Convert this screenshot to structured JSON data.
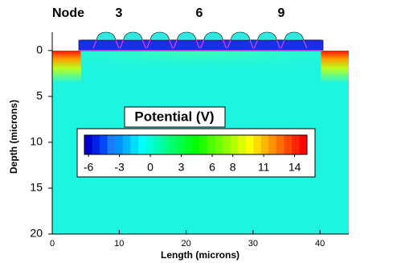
{
  "chart_data": {
    "type": "contour",
    "node_label": "Node",
    "nodes": [
      "3",
      "6",
      "9"
    ],
    "xlabel": "Length (microns)",
    "ylabel": "Depth (microns)",
    "xlim": [
      0,
      44.3
    ],
    "xticks": [
      0,
      10,
      20,
      30,
      40
    ],
    "ylim": [
      -2,
      20
    ],
    "yticks": [
      0,
      5,
      10,
      15,
      20
    ],
    "y_inverted": true,
    "colorbar_title": "Potential (V)",
    "clim": [
      -6.4,
      15.2
    ],
    "colorbar_ticks": [
      -6,
      -3,
      0,
      3,
      6,
      8,
      11,
      14
    ]
  }
}
